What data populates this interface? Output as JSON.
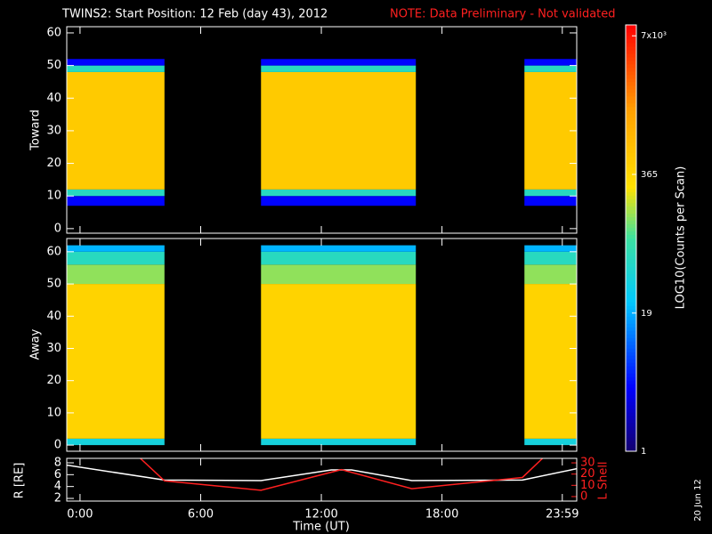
{
  "title": "TWINS2: Start Position: 12 Feb (day  43), 2012",
  "note": "NOTE: Data Preliminary - Not validated",
  "stamp": "20 Jun 12",
  "colorbar": {
    "label": "LOG10(Counts per Scan)",
    "zlim": [
      1,
      8830
    ],
    "log": true,
    "zticks": [
      1,
      19,
      365,
      {
        "value": 7000,
        "label": "7x10³"
      }
    ]
  },
  "chart_data": [
    {
      "type": "heatmap",
      "ylabel": "Toward",
      "xlim": [
        -0.66,
        24.7
      ],
      "ylim": [
        -1.4,
        61.9
      ],
      "yticks": [
        0,
        10,
        20,
        30,
        40,
        50,
        60
      ],
      "segments": [
        {
          "start": -0.66,
          "end": 4.2
        },
        {
          "start": 9.0,
          "end": 16.7
        },
        {
          "start": 22.1,
          "end": 24.7
        }
      ],
      "bands": [
        {
          "ymin": 7,
          "ymax": 10,
          "value": 4
        },
        {
          "ymin": 10,
          "ymax": 12,
          "value": 60
        },
        {
          "ymin": 12,
          "ymax": 48,
          "value": 500
        },
        {
          "ymin": 48,
          "ymax": 50,
          "value": 60
        },
        {
          "ymin": 50,
          "ymax": 52,
          "value": 4
        }
      ]
    },
    {
      "type": "heatmap",
      "ylabel": "Away",
      "xlim": [
        -0.66,
        24.7
      ],
      "ylim": [
        -1.9,
        64.1
      ],
      "yticks": [
        0,
        10,
        20,
        30,
        40,
        50,
        60
      ],
      "segments": [
        {
          "start": -0.66,
          "end": 4.2
        },
        {
          "start": 9.0,
          "end": 16.7
        },
        {
          "start": 22.1,
          "end": 24.7
        }
      ],
      "bands": [
        {
          "ymin": 0,
          "ymax": 2,
          "value": 40
        },
        {
          "ymin": 2,
          "ymax": 50,
          "value": 400
        },
        {
          "ymin": 50,
          "ymax": 56,
          "value": 150
        },
        {
          "ymin": 56,
          "ymax": 60,
          "value": 60
        },
        {
          "ymin": 60,
          "ymax": 62,
          "value": 20
        }
      ]
    },
    {
      "type": "line",
      "ylabel": "R [RE]",
      "y2label": "L Shell",
      "xlabel": "Time (UT)",
      "xlim": [
        -0.66,
        24.7
      ],
      "xticks": [
        {
          "value": 0,
          "label": "0:00"
        },
        {
          "value": 6,
          "label": "6:00"
        },
        {
          "value": 12,
          "label": "12:00"
        },
        {
          "value": 18,
          "label": "18:00"
        },
        {
          "value": 23.983,
          "label": "23:59"
        }
      ],
      "ylim": [
        1.55,
        8.75
      ],
      "yticks": [
        2,
        4,
        6,
        8
      ],
      "y2lim": [
        -4,
        34
      ],
      "y2ticks": [
        0,
        10,
        20,
        30
      ],
      "series": [
        {
          "color": "#ffffff",
          "x": [
            -0.66,
            4.2,
            9.0,
            12.5,
            13.5,
            16.5,
            22.0,
            24.7
          ],
          "values": [
            7.6,
            5.1,
            5.0,
            6.8,
            6.8,
            5.0,
            5.1,
            7.0
          ]
        },
        {
          "color": "#ff2020",
          "axis": "y2",
          "x": [
            3.0,
            4.2,
            9.0,
            13.0,
            16.5,
            22.0,
            23.0
          ],
          "values": [
            34,
            14,
            5.6,
            24,
            7,
            17,
            34
          ]
        }
      ]
    }
  ]
}
